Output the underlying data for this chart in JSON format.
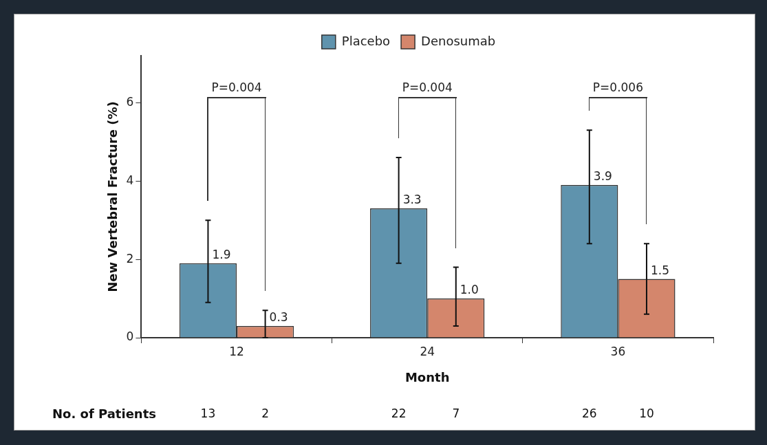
{
  "chart_data": {
    "type": "bar",
    "ylabel": "New Vertebral Fracture (%)",
    "xlabel": "Month",
    "categories": [
      "12",
      "24",
      "36"
    ],
    "series": [
      {
        "name": "Placebo",
        "color": "#5f93ad",
        "values": [
          1.9,
          3.3,
          3.9
        ],
        "errors": [
          [
            0.9,
            3.0
          ],
          [
            1.9,
            4.6
          ],
          [
            2.4,
            5.3
          ]
        ],
        "value_labels": [
          "1.9",
          "3.3",
          "3.9"
        ]
      },
      {
        "name": "Denosumab",
        "color": "#d4866c",
        "values": [
          0.3,
          1.0,
          1.5
        ],
        "errors": [
          [
            0.0,
            0.7
          ],
          [
            0.3,
            1.8
          ],
          [
            0.6,
            2.4
          ]
        ],
        "value_labels": [
          "0.3",
          "1.0",
          "1.5"
        ]
      }
    ],
    "ylim": [
      0,
      7.2
    ],
    "yticks": [
      0,
      2,
      4,
      6
    ],
    "grid": false,
    "legend": "top",
    "annotations": [
      "P=0.004",
      "P=0.004",
      "P=0.006",
      "No. of Patients",
      "13",
      "2",
      "22",
      "7",
      "26",
      "10"
    ]
  }
}
